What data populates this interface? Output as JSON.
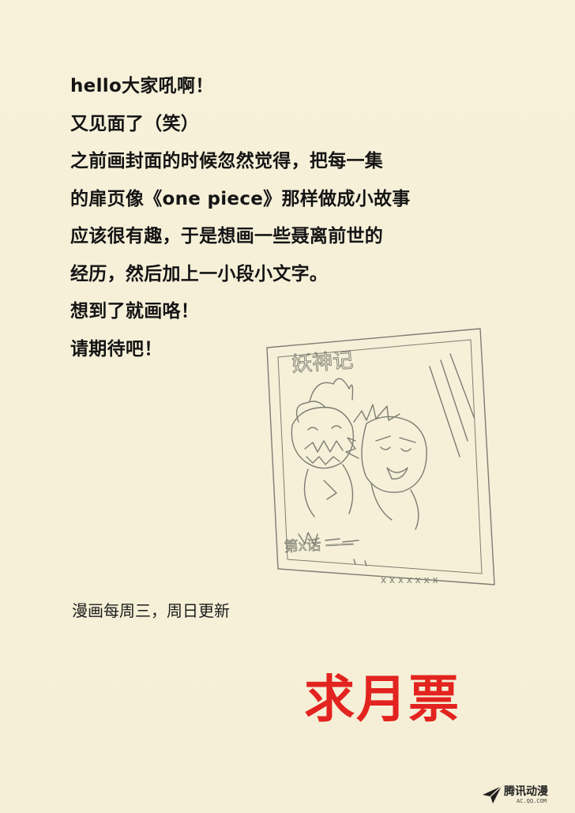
{
  "note": {
    "lines": [
      "hello大家吼啊！",
      "又见面了（笑）",
      "之前画封面的时候忽然觉得，把每一集",
      "的扉页像《one piece》那样做成小故事",
      "应该很有趣，于是想画一些聂离前世的",
      "经历，然后加上一小段小文字。",
      "想到了就画咯！",
      "请期待吧！"
    ]
  },
  "sketch": {
    "title": "妖神记",
    "caption": "第x话 ——",
    "footer": "x x x x x x x"
  },
  "update_schedule": "漫画每周三，周日更新",
  "vote_text": "求月票",
  "watermark": {
    "name": "腾讯动漫",
    "url": "AC.QQ.COM",
    "icon": "paper-plane-icon"
  },
  "colors": {
    "background": "#f6f0d9",
    "vote": "#e3231f",
    "text": "#141414"
  }
}
